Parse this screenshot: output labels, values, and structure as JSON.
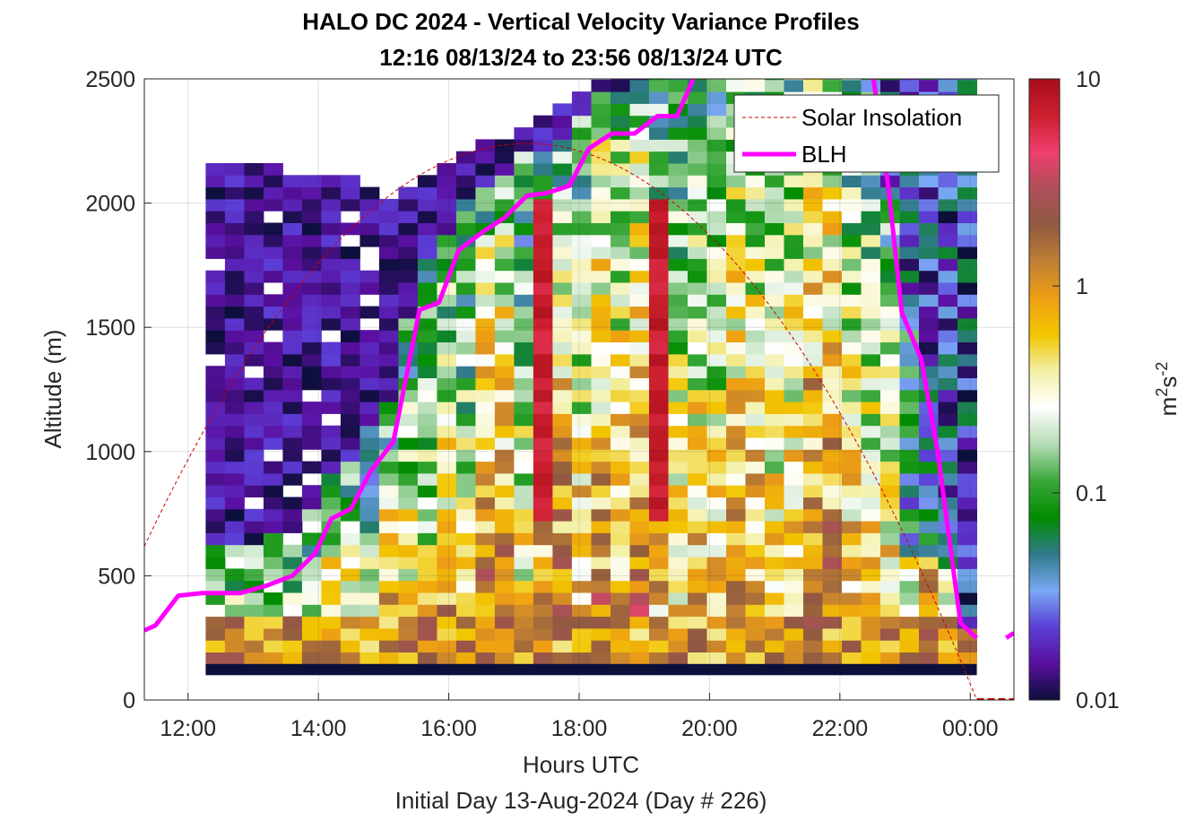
{
  "chart_data": {
    "type": "heatmap",
    "title": [
      "HALO DC 2024 - Vertical Velocity Variance Profiles",
      "12:16 08/13/24 to 23:56 08/13/24  UTC"
    ],
    "xlabel": "Hours UTC",
    "subtitle": "Initial Day 13-Aug-2024 (Day # 226)",
    "ylabel": "Altitude (m)",
    "colorbar_label": {
      "base": "m",
      "sup1": "2",
      "mid": "s",
      "sup2": "-2"
    },
    "xlim_hours": [
      11.33,
      24.67
    ],
    "ylim_m": [
      0,
      2500
    ],
    "x_ticks": [
      {
        "value": 12,
        "label": "12:00"
      },
      {
        "value": 14,
        "label": "14:00"
      },
      {
        "value": 16,
        "label": "16:00"
      },
      {
        "value": 18,
        "label": "18:00"
      },
      {
        "value": 20,
        "label": "20:00"
      },
      {
        "value": 22,
        "label": "22:00"
      },
      {
        "value": 24,
        "label": "00:00"
      }
    ],
    "y_ticks": [
      {
        "value": 0,
        "label": "0"
      },
      {
        "value": 500,
        "label": "500"
      },
      {
        "value": 1000,
        "label": "1000"
      },
      {
        "value": 1500,
        "label": "1500"
      },
      {
        "value": 2000,
        "label": "2000"
      },
      {
        "value": 2500,
        "label": "2500"
      }
    ],
    "colorbar": {
      "scale": "log",
      "range": [
        0.01,
        10
      ],
      "ticks": [
        {
          "value": 0.01,
          "label": "0.01"
        },
        {
          "value": 0.1,
          "label": "0.1"
        },
        {
          "value": 1,
          "label": "1"
        },
        {
          "value": 10,
          "label": "10"
        }
      ],
      "colormap": [
        "#0b0f3a",
        "#5a0fa0",
        "#5b40d8",
        "#7aa8f5",
        "#2f7a8a",
        "#008c00",
        "#3aa83a",
        "#b5dcb5",
        "#ffffff",
        "#f3f0a8",
        "#f2c600",
        "#ee9e14",
        "#c07f33",
        "#8f5a40",
        "#b04f5a",
        "#ef3f6e",
        "#cc1f2e",
        "#a80d1a"
      ]
    },
    "grid": true,
    "legend": {
      "location": "top-right",
      "entries": [
        {
          "name": "Solar Insolation",
          "style": "dashed",
          "color": "#cc0000"
        },
        {
          "name": "BLH",
          "style": "solid",
          "color": "#ff00ff"
        }
      ]
    },
    "blh": {
      "color": "#ff00ff",
      "points": [
        [
          11.33,
          280
        ],
        [
          11.5,
          300
        ],
        [
          11.85,
          420
        ],
        [
          12.2,
          430
        ],
        [
          12.8,
          430
        ],
        [
          13.2,
          460
        ],
        [
          13.6,
          500
        ],
        [
          13.95,
          590
        ],
        [
          14.2,
          730
        ],
        [
          14.5,
          770
        ],
        [
          14.8,
          920
        ],
        [
          15.15,
          1040
        ],
        [
          15.55,
          1570
        ],
        [
          15.85,
          1600
        ],
        [
          16.15,
          1810
        ],
        [
          16.5,
          1880
        ],
        [
          16.85,
          1940
        ],
        [
          17.2,
          2030
        ],
        [
          17.5,
          2040
        ],
        [
          17.85,
          2070
        ],
        [
          18.15,
          2220
        ],
        [
          18.5,
          2280
        ],
        [
          18.85,
          2280
        ],
        [
          19.2,
          2350
        ],
        [
          19.5,
          2350
        ],
        [
          19.8,
          2530
        ]
      ],
      "points_late": [
        [
          22.5,
          2530
        ],
        [
          22.75,
          2050
        ],
        [
          22.95,
          1560
        ],
        [
          23.25,
          1370
        ],
        [
          23.5,
          1000
        ],
        [
          23.85,
          310
        ],
        [
          24.05,
          260
        ],
        [
          24.1,
          250
        ]
      ],
      "points_tail": [
        [
          24.55,
          250
        ],
        [
          24.67,
          270
        ]
      ]
    },
    "solar_insolation": {
      "color": "#cc0000",
      "peak_hour": 17.2,
      "peak_altitude": 2240,
      "zero_hour": 24.1,
      "zero_altitude": 0
    },
    "scan_time_range": [
      12.27,
      24.1
    ],
    "surface_band": {
      "bottom": 100,
      "top": 145,
      "value": 0.01
    },
    "heatmap_note": "Gridded log10 variance, columns = scans (~10 min), rows = range gates (~48 m). Values approximated from the image colors."
  }
}
